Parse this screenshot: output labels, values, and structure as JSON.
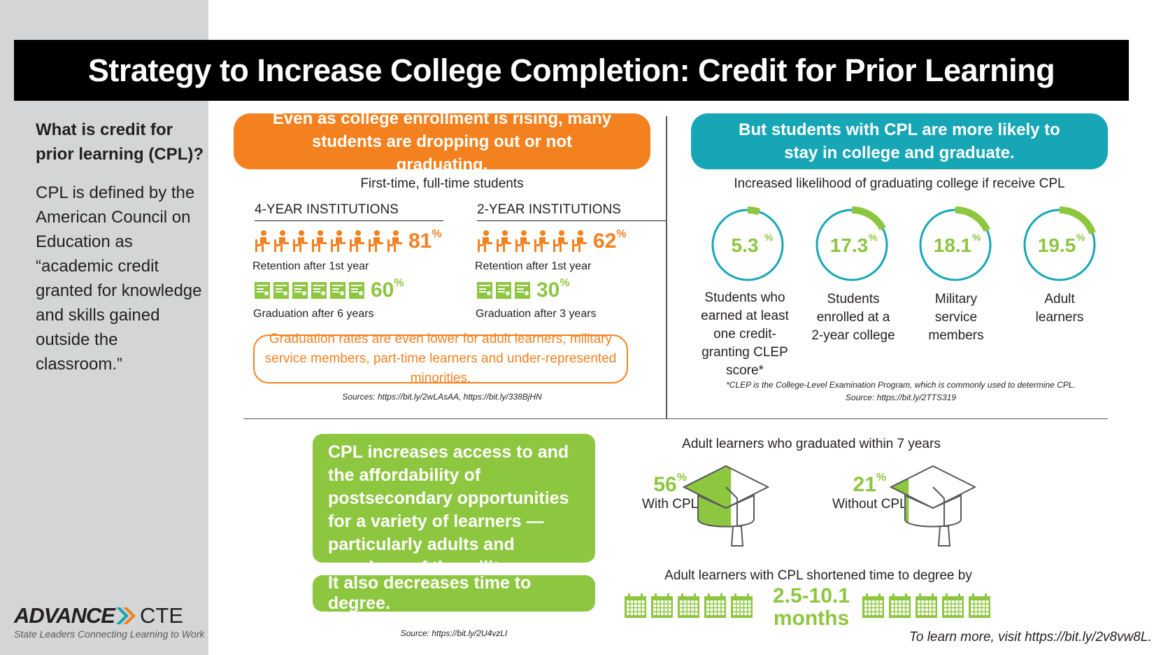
{
  "title": "Strategy to Increase College Completion: Credit for Prior Learning",
  "sidebar": {
    "question": "What is credit for prior learning (CPL)?",
    "definition": "CPL is defined by the American Council on Education as “academic credit granted for knowledge and skills gained outside the classroom.”",
    "logo": {
      "word1": "ADVANCE",
      "word2": "CTE",
      "tagline": "State Leaders Connecting Learning to Work"
    }
  },
  "left_panel": {
    "banner": "Even as college enrollment is rising, many students are dropping out or not graduating.",
    "subhead": "First-time, full-time students",
    "four_year": {
      "heading": "4-YEAR INSTITUTIONS",
      "retention_value": "81",
      "retention_label": "Retention after 1st year",
      "retention_icon_count": 8,
      "graduation_value": "60",
      "graduation_label": "Graduation after 6 years",
      "graduation_icon_count": 6
    },
    "two_year": {
      "heading": "2-YEAR INSTITUTIONS",
      "retention_value": "62",
      "retention_label": "Retention after 1st year",
      "retention_icon_count": 6,
      "graduation_value": "30",
      "graduation_label": "Graduation after 3 years",
      "graduation_icon_count": 3
    },
    "note": "Graduation rates are even lower for adult learners, military service members, part-time learners and under-represented minorities.",
    "sources": "Sources: https://bit.ly/2wLAsAA, https://bit.ly/338BjHN"
  },
  "right_panel": {
    "banner": "But students with CPL are more likely to stay in college and graduate.",
    "subhead": "Increased likelihood of graduating college if receive CPL",
    "rings": [
      {
        "value": 5.3,
        "label": "5.3",
        "caption": "Students who earned at least one credit-granting CLEP score*"
      },
      {
        "value": 17.3,
        "label": "17.3",
        "caption": "Students enrolled at a 2-year college"
      },
      {
        "value": 18.1,
        "label": "18.1",
        "caption": "Military service members"
      },
      {
        "value": 19.5,
        "label": "19.5",
        "caption": "Adult learners"
      }
    ],
    "percent_sign": "%",
    "footnote": "*CLEP is the College-Level Examination Program, which is commonly used to determine CPL.",
    "source": "Source: https://bit.ly/2TTS319"
  },
  "bottom": {
    "green_box": "CPL increases access to and the affordability of postsecondary opportunities for a variety of learners — particularly adults and members of the military.",
    "green_box2": "It also decreases time to degree.",
    "source": "Source: https://bit.ly/2U4vzLI",
    "grad_heading": "Adult learners who graduated within 7 years",
    "with_cpl": {
      "value": 56,
      "label": "56",
      "caption": "With CPL"
    },
    "without_cpl": {
      "value": 21,
      "label": "21",
      "caption": "Without CPL"
    },
    "time_heading": "Adult learners with CPL shortened time to degree by",
    "time_value": "2.5-10.1",
    "time_unit": "months",
    "calendar_count_left": 5,
    "calendar_count_right": 5,
    "learn_more": "To learn more, visit https://bit.ly/2v8vw8L."
  },
  "colors": {
    "orange": "#f4811f",
    "teal": "#17a6b6",
    "green": "#8dc63f",
    "dark": "#231f20",
    "gray_sidebar": "#d4d5d7"
  }
}
